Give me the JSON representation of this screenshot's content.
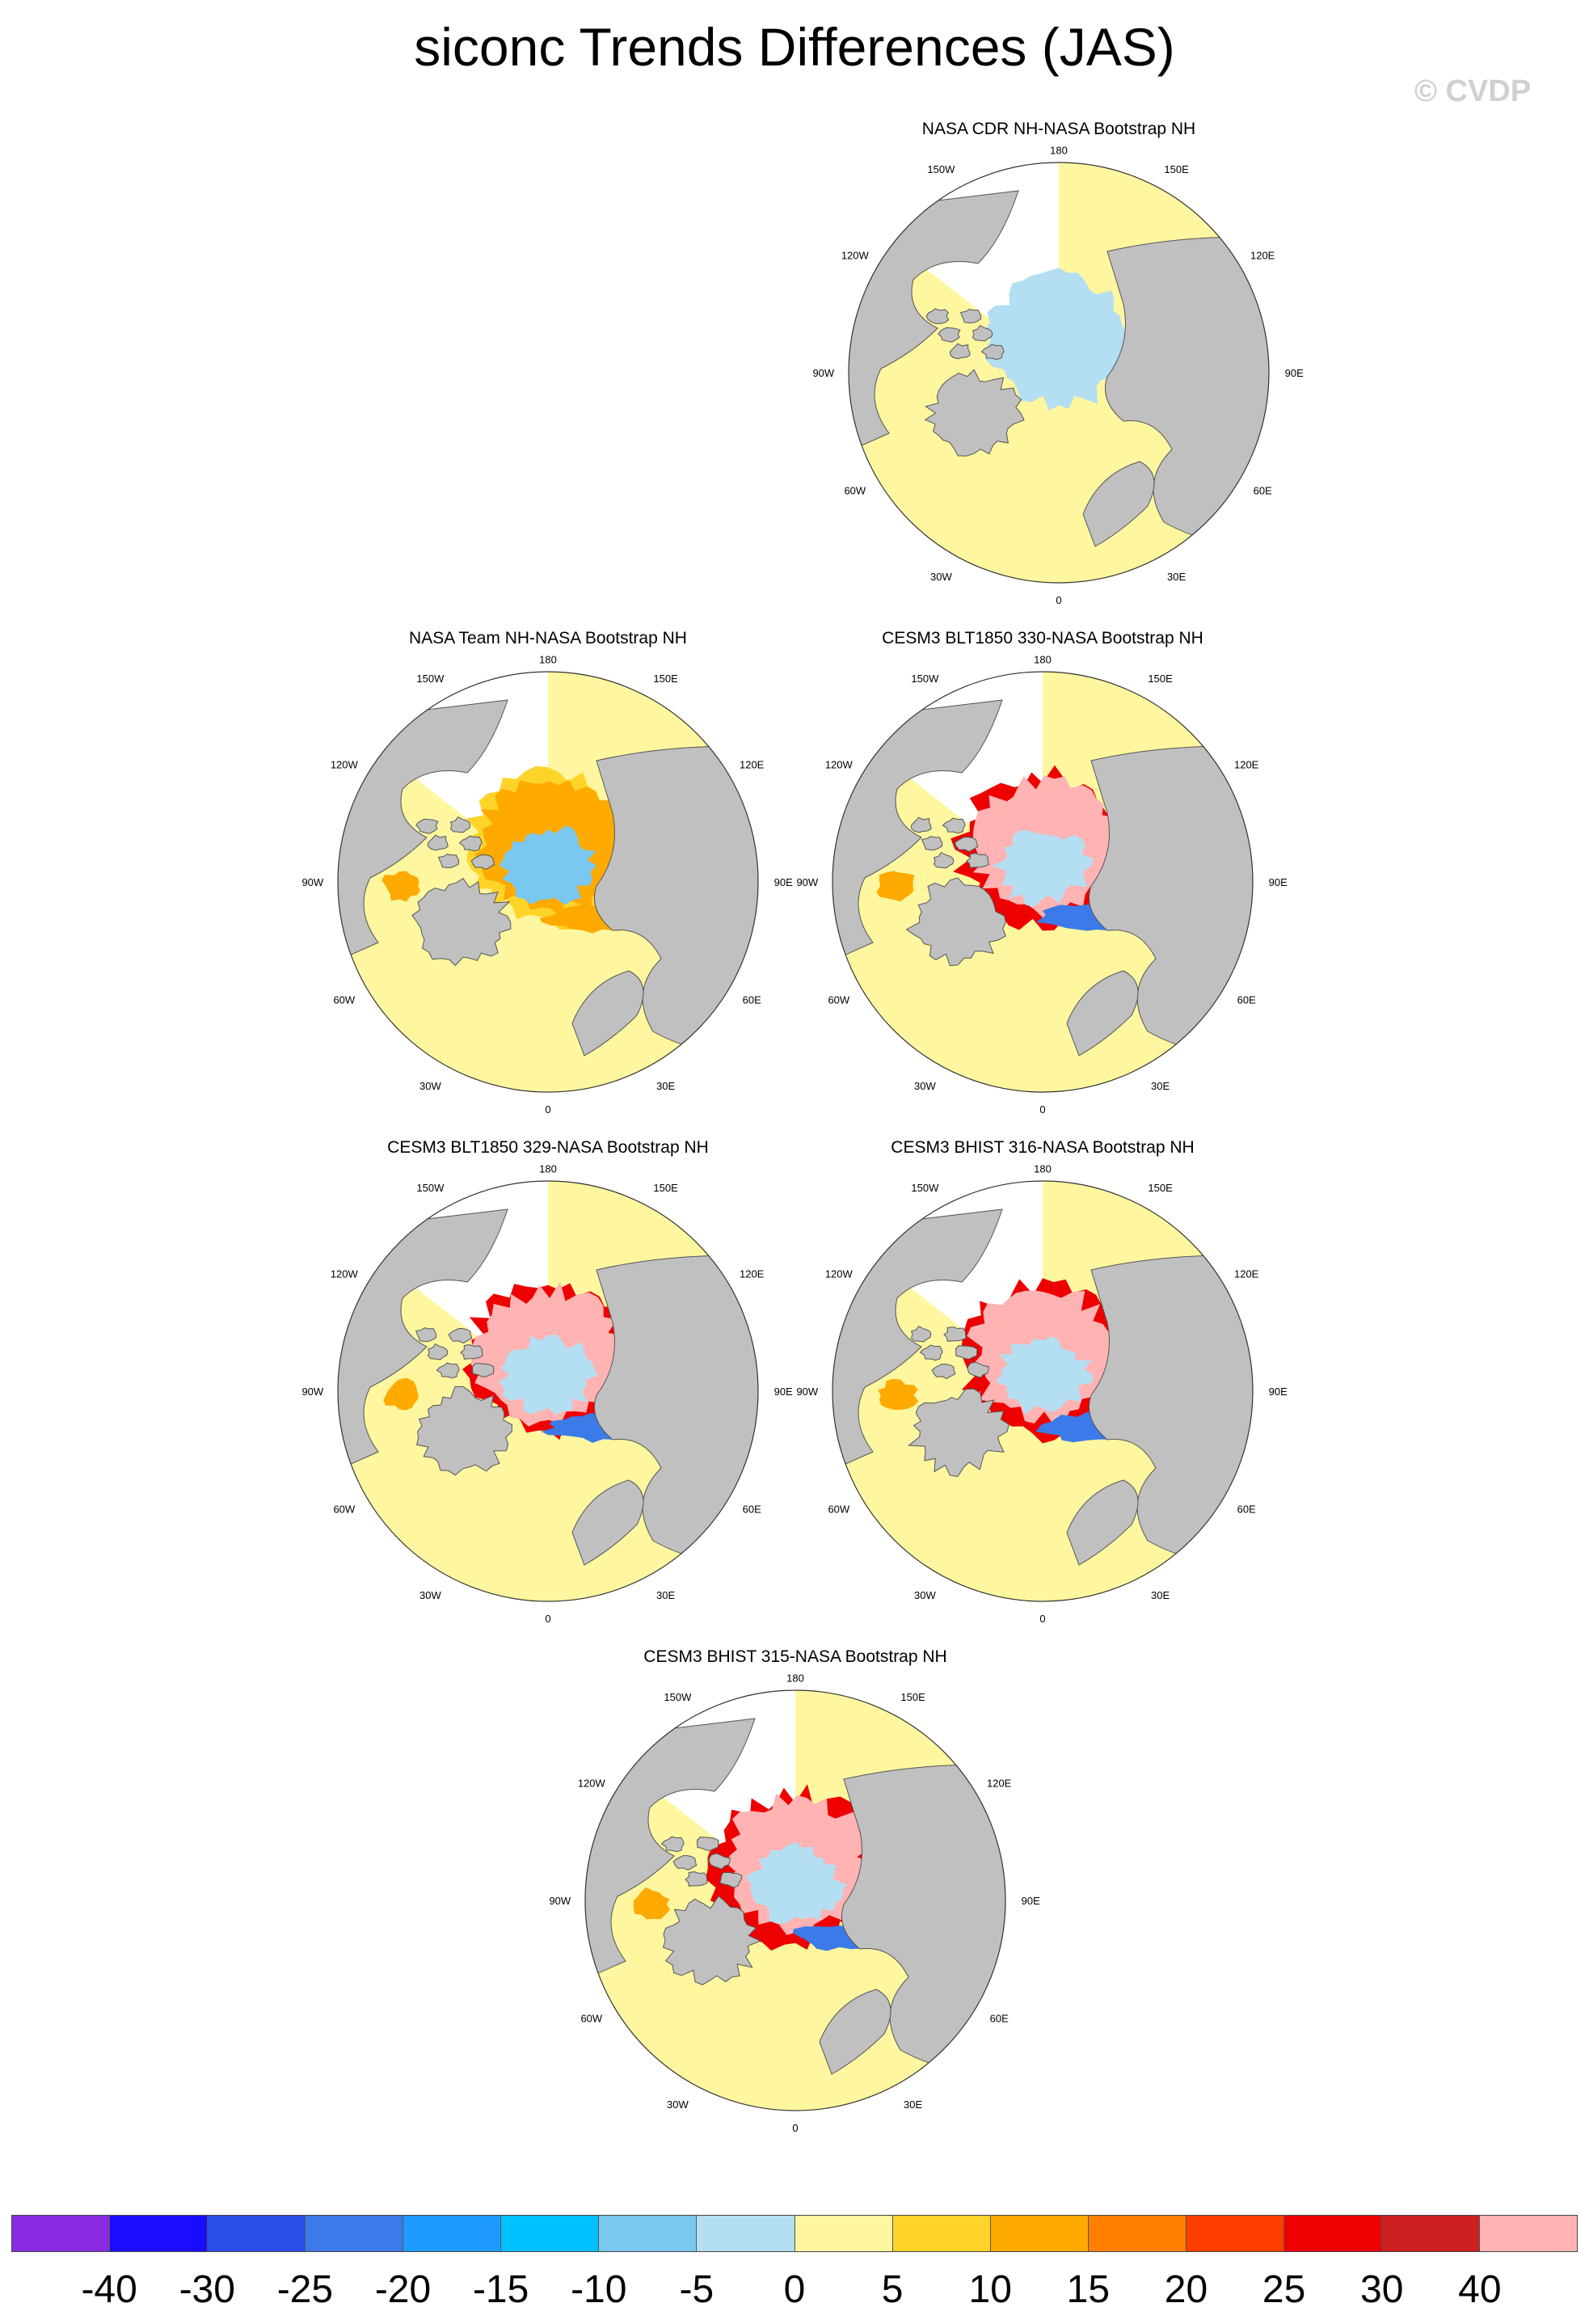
{
  "figure": {
    "title": "siconc Trends Differences (JAS)",
    "watermark": "© CVDP"
  },
  "map_labels": {
    "lon_top": "180",
    "lon_bottom": "0",
    "w150": "150W",
    "e150": "150E",
    "w120": "120W",
    "e120": "120E",
    "w90": "90W",
    "e90": "90E",
    "w60": "60W",
    "e60": "60E",
    "w30": "30W",
    "e30": "30E"
  },
  "panels": [
    {
      "title": "NASA CDR NH-NASA Bootstrap NH",
      "style": "cdr"
    },
    {
      "title": "NASA Team NH-NASA Bootstrap NH",
      "style": "team"
    },
    {
      "title": "CESM3 BLT1850 330-NASA Bootstrap NH",
      "style": "blt330"
    },
    {
      "title": "CESM3 BLT1850 329-NASA Bootstrap NH",
      "style": "blt329"
    },
    {
      "title": "CESM3 BHIST 316-NASA Bootstrap NH",
      "style": "bhist316"
    },
    {
      "title": "CESM3 BHIST 315-NASA Bootstrap NH",
      "style": "bhist315"
    }
  ],
  "colorbar": {
    "colors": [
      "#8a2be2",
      "#1a0dff",
      "#2a4ee8",
      "#3b7ae8",
      "#1f9aff",
      "#00c0ff",
      "#7ac8f0",
      "#b4def2",
      "#fff7a0",
      "#ffd42a",
      "#ffaa00",
      "#ff7f00",
      "#ff3f00",
      "#ee0000",
      "#cc1f1f",
      "#ffb3b3"
    ],
    "labels": [
      "-40",
      "-30",
      "-25",
      "-20",
      "-15",
      "-10",
      "-5",
      "0",
      "5",
      "10",
      "15",
      "20",
      "25",
      "30",
      "40"
    ]
  },
  "colors": {
    "land": "#c0c0c0",
    "positive_small": "#fff7a0",
    "negative_small": "#b4def2"
  }
}
